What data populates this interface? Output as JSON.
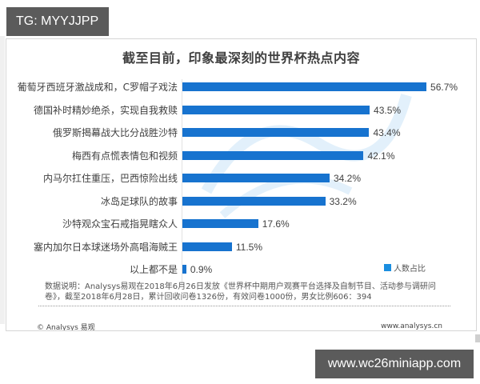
{
  "overlay": {
    "tg_tag": "TG: MYYJJPP",
    "url_tag": "www.wc26miniapp.com"
  },
  "card": {
    "title": "截至目前，印象最深刻的世界杯热点内容",
    "legend_label": "人数占比",
    "note": "数据说明：Analysys易观在2018年6月26日发放《世界杯中期用户观赛平台选择及自制节目、活动参与调研问卷》，截至2018年6月28日，累计回收问卷1326份，有效问卷1000份，男女比例606：394",
    "copyright": "© Analysys 易观",
    "site": "www.analysys.cn"
  },
  "colors": {
    "bar": "#1773cf",
    "legend": "#1a8ee0",
    "tag_bg": "#5b5b5b"
  },
  "chart_data": {
    "type": "bar",
    "orientation": "horizontal",
    "title": "截至目前，印象最深刻的世界杯热点内容",
    "categories": [
      "葡萄牙西班牙激战成和，C罗帽子戏法",
      "德国补时精妙绝杀，实现自我救赎",
      "俄罗斯揭幕战大比分战胜沙特",
      "梅西有点慌表情包和视频",
      "内马尔扛住重压，巴西惊险出线",
      "冰岛足球队的故事",
      "沙特观众宝石戒指晃瞎众人",
      "塞内加尔日本球迷场外高唱海贼王",
      "以上都不是"
    ],
    "series": [
      {
        "name": "人数占比",
        "values": [
          56.7,
          43.5,
          43.4,
          42.1,
          34.2,
          33.2,
          17.6,
          11.5,
          0.9
        ],
        "labels": [
          "56.7%",
          "43.5%",
          "43.4%",
          "42.1%",
          "34.2%",
          "33.2%",
          "17.6%",
          "11.5%",
          "0.9%"
        ]
      }
    ],
    "xlabel": "",
    "ylabel": "",
    "value_unit": "%",
    "grid": false,
    "legend_position": "bottom-right"
  }
}
